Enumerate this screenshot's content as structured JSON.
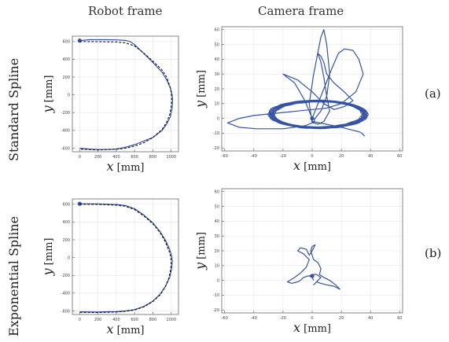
{
  "headers": {
    "robot": "Robot frame",
    "camera": "Camera frame"
  },
  "rows": {
    "a_label": "Standard Spline",
    "b_label": "Exponential Spline",
    "a_tag": "(a)",
    "b_tag": "(b)"
  },
  "colors": {
    "trajectory": "#3553a3",
    "reference": "#111111",
    "grid": "#e6e6e6",
    "axes": "#555555"
  },
  "chart_data": [
    {
      "id": "robot-standard",
      "type": "line",
      "xlabel_var": "x",
      "xlabel_unit": "[mm]",
      "ylabel_var": "y",
      "ylabel_unit": "[mm]",
      "xlim": [
        -80,
        1080
      ],
      "ylim": [
        -640,
        660
      ],
      "xticks": [
        0,
        200,
        400,
        600,
        800,
        1000
      ],
      "yticks": [
        -600,
        -400,
        -200,
        0,
        200,
        400,
        600
      ],
      "grid": true,
      "series": [
        {
          "style": "solid",
          "x": [
            0,
            100,
            200,
            300,
            400,
            500,
            550,
            600,
            700,
            800,
            900,
            950,
            990,
            1010,
            1015,
            1010,
            990,
            950,
            900,
            800,
            700,
            600,
            500,
            450,
            400,
            300,
            200,
            100,
            0
          ],
          "y": [
            610,
            620,
            620,
            620,
            618,
            612,
            600,
            565,
            465,
            365,
            255,
            170,
            80,
            0,
            -60,
            -150,
            -250,
            -330,
            -400,
            -480,
            -520,
            -560,
            -590,
            -600,
            -610,
            -615,
            -615,
            -610,
            -600
          ]
        },
        {
          "style": "dashed",
          "x": [
            0,
            200,
            400,
            500,
            600,
            700,
            800,
            900,
            950,
            985,
            1000,
            1005,
            1000,
            985,
            950,
            900,
            800,
            700,
            600,
            500,
            400,
            200,
            0
          ],
          "y": [
            600,
            598,
            595,
            585,
            550,
            470,
            380,
            280,
            200,
            100,
            30,
            -50,
            -130,
            -220,
            -310,
            -390,
            -480,
            -540,
            -575,
            -600,
            -612,
            -620,
            -610
          ]
        }
      ]
    },
    {
      "id": "camera-standard",
      "type": "line",
      "xlabel_var": "x",
      "xlabel_unit": "[mm]",
      "ylabel_var": "y",
      "ylabel_unit": "[mm]",
      "xlim": [
        -62,
        62
      ],
      "ylim": [
        -22,
        62
      ],
      "xticks": [
        -60,
        -40,
        -20,
        0,
        20,
        40,
        60
      ],
      "yticks": [
        -20,
        -10,
        0,
        10,
        20,
        30,
        40,
        50,
        60
      ],
      "grid": true,
      "ellipse": {
        "cx": 3,
        "cy": 2.5,
        "rx": 32,
        "ry": 9,
        "turns": 16
      },
      "series": [
        {
          "style": "solid",
          "x": [
            0,
            2,
            6,
            10,
            14,
            18,
            22,
            28,
            32,
            35,
            30,
            20,
            10,
            0,
            -10,
            -20,
            -30,
            -40,
            -50,
            -58,
            -50,
            -38,
            -20,
            -5,
            0,
            -2,
            1,
            4,
            6,
            8,
            10,
            12,
            10,
            6,
            2,
            1,
            0,
            0,
            -5,
            -12,
            -20,
            -10,
            0,
            8,
            15,
            22,
            28,
            22,
            15,
            10,
            8,
            6,
            4,
            6,
            8,
            10,
            12,
            8,
            4,
            1,
            0,
            10,
            20,
            28,
            32,
            34,
            35,
            36
          ],
          "y": [
            0,
            5,
            15,
            25,
            35,
            44,
            47,
            46,
            40,
            30,
            18,
            10,
            7,
            6,
            5,
            4,
            3,
            2,
            0,
            -3,
            -6,
            -7,
            -7,
            -5,
            -3,
            10,
            30,
            45,
            55,
            60,
            50,
            30,
            15,
            5,
            0,
            -3,
            -3,
            0,
            12,
            24,
            30,
            26,
            18,
            10,
            6,
            8,
            12,
            18,
            24,
            30,
            38,
            42,
            44,
            38,
            28,
            15,
            5,
            -2,
            -4,
            -3,
            -2,
            -4,
            -6,
            -8,
            -9,
            -10,
            -11,
            -12
          ]
        }
      ]
    },
    {
      "id": "robot-exponential",
      "type": "line",
      "xlabel_var": "x",
      "xlabel_unit": "[mm]",
      "ylabel_var": "y",
      "ylabel_unit": "[mm]",
      "xlim": [
        -80,
        1080
      ],
      "ylim": [
        -640,
        660
      ],
      "xticks": [
        0,
        200,
        400,
        600,
        800,
        1000
      ],
      "yticks": [
        -600,
        -400,
        -200,
        0,
        200,
        400,
        600
      ],
      "grid": true,
      "series": [
        {
          "style": "solid",
          "x": [
            0,
            200,
            400,
            500,
            600,
            700,
            800,
            880,
            940,
            985,
            1005,
            1012,
            1005,
            985,
            940,
            880,
            800,
            700,
            600,
            500,
            400,
            200,
            0
          ],
          "y": [
            605,
            603,
            597,
            585,
            550,
            480,
            390,
            290,
            190,
            90,
            20,
            -40,
            -120,
            -220,
            -320,
            -410,
            -490,
            -550,
            -585,
            -600,
            -608,
            -612,
            -610
          ]
        },
        {
          "style": "dashed",
          "x": [
            0,
            200,
            400,
            500,
            600,
            700,
            800,
            880,
            935,
            975,
            995,
            1000,
            995,
            975,
            935,
            880,
            800,
            700,
            600,
            500,
            400,
            200,
            0
          ],
          "y": [
            600,
            598,
            590,
            578,
            540,
            470,
            380,
            280,
            180,
            80,
            10,
            -50,
            -130,
            -230,
            -330,
            -420,
            -495,
            -555,
            -590,
            -605,
            -612,
            -618,
            -615
          ]
        }
      ]
    },
    {
      "id": "camera-exponential",
      "type": "line",
      "xlabel_var": "x",
      "xlabel_unit": "[mm]",
      "ylabel_var": "y",
      "ylabel_unit": "[mm]",
      "xlim": [
        -62,
        62
      ],
      "ylim": [
        -22,
        62
      ],
      "xticks": [
        -60,
        -40,
        -20,
        0,
        20,
        40,
        60
      ],
      "yticks": [
        -20,
        -10,
        0,
        10,
        20,
        30,
        40,
        50,
        60
      ],
      "grid": true,
      "series": [
        {
          "style": "solid",
          "x": [
            0,
            -3,
            -6,
            -8,
            -10,
            -14,
            -17,
            -12,
            -8,
            -4,
            -2,
            -6,
            -10,
            -8,
            -4,
            -2,
            0,
            2,
            0,
            -1,
            1,
            4,
            6,
            5,
            8,
            12,
            16,
            18,
            19,
            15,
            10,
            6,
            3,
            1,
            2,
            4,
            6,
            3,
            0,
            -2,
            0,
            1
          ],
          "y": [
            3,
            3,
            2,
            0,
            -1,
            -2,
            -1,
            2,
            5,
            9,
            14,
            18,
            20,
            22,
            21,
            17,
            20,
            24,
            23,
            20,
            14,
            12,
            8,
            4,
            2,
            0,
            -3,
            -5,
            -6,
            -4,
            -3,
            -2,
            -1,
            -3,
            -2,
            0,
            2,
            4,
            4,
            3,
            2,
            0
          ]
        }
      ]
    }
  ]
}
